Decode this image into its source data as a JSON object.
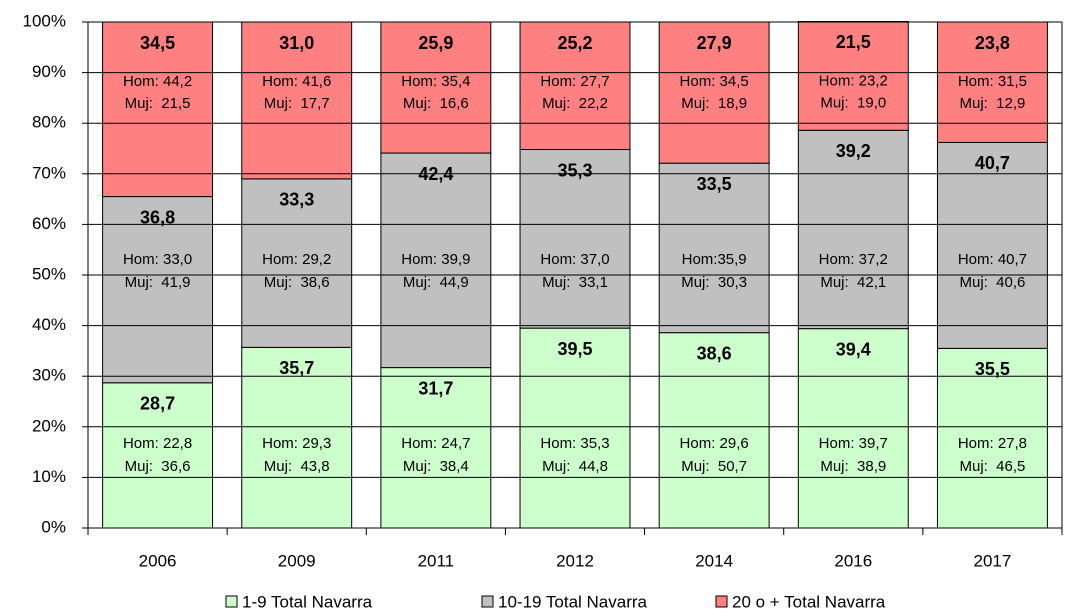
{
  "chart_data": {
    "type": "stacked_bar",
    "categories": [
      "2006",
      "2009",
      "2011",
      "2012",
      "2014",
      "2016",
      "2017"
    ],
    "ylim": [
      0,
      100
    ],
    "yticks": [
      {
        "value": 0,
        "label": "0%"
      },
      {
        "value": 10,
        "label": "10%"
      },
      {
        "value": 20,
        "label": "20%"
      },
      {
        "value": 30,
        "label": "30%"
      },
      {
        "value": 40,
        "label": "40%"
      },
      {
        "value": 50,
        "label": "50%"
      },
      {
        "value": 60,
        "label": "60%"
      },
      {
        "value": 70,
        "label": "70%"
      },
      {
        "value": 80,
        "label": "80%"
      },
      {
        "value": 90,
        "label": "90%"
      },
      {
        "value": 100,
        "label": "100%"
      }
    ],
    "grid": true,
    "legend": "bottom",
    "series": [
      {
        "name": "1-9 Total Navarra",
        "color": "#ccffcc",
        "values": [
          28.7,
          35.7,
          31.7,
          39.5,
          38.6,
          39.4,
          35.5
        ],
        "value_labels": [
          "28,7",
          "35,7",
          "31,7",
          "39,5",
          "38,6",
          "39,4",
          "35,5"
        ],
        "annotations": [
          [
            "Hom: 22,8",
            "Muj:  36,6"
          ],
          [
            "Hom: 29,3",
            "Muj:  43,8"
          ],
          [
            "Hom: 24,7",
            "Muj:  38,4"
          ],
          [
            "Hom: 35,3",
            "Muj:  44,8"
          ],
          [
            "Hom: 29,6",
            "Muj:  50,7"
          ],
          [
            "Hom: 39,7",
            "Muj:  38,9"
          ],
          [
            "Hom: 27,8",
            "Muj:  46,5"
          ]
        ]
      },
      {
        "name": "10-19 Total Navarra",
        "color": "#c0c0c0",
        "values": [
          36.8,
          33.3,
          42.4,
          35.3,
          33.5,
          39.2,
          40.7
        ],
        "value_labels": [
          "36,8",
          "33,3",
          "42,4",
          "35,3",
          "33,5",
          "39,2",
          "40,7"
        ],
        "annotations": [
          [
            "Hom: 33,0",
            "Muj:  41,9"
          ],
          [
            "Hom: 29,2",
            "Muj:  38,6"
          ],
          [
            "Hom: 39,9",
            "Muj:  44,9"
          ],
          [
            "Hom: 37,0",
            "Muj:  33,1"
          ],
          [
            "Hom:35,9",
            "Muj:  30,3"
          ],
          [
            "Hom: 37,2",
            "Muj:  42,1"
          ],
          [
            "Hom: 40,7",
            "Muj:  40,6"
          ]
        ]
      },
      {
        "name": "20 o + Total Navarra",
        "color": "#ff8080",
        "values": [
          34.5,
          31.0,
          25.9,
          25.2,
          27.9,
          21.5,
          23.8
        ],
        "value_labels": [
          "34,5",
          "31,0",
          "25,9",
          "25,2",
          "27,9",
          "21,5",
          "23,8"
        ],
        "annotations": [
          [
            "Hom: 44,2",
            "Muj:  21,5"
          ],
          [
            "Hom: 41,6",
            "Muj:  17,7"
          ],
          [
            "Hom: 35,4",
            "Muj:  16,6"
          ],
          [
            "Hom: 27,7",
            "Muj:  22,2"
          ],
          [
            "Hom: 34,5",
            "Muj:  18,9"
          ],
          [
            "Hom: 23,2",
            "Muj:  19,0"
          ],
          [
            "Hom: 31,5",
            "Muj:  12,9"
          ]
        ]
      }
    ]
  }
}
